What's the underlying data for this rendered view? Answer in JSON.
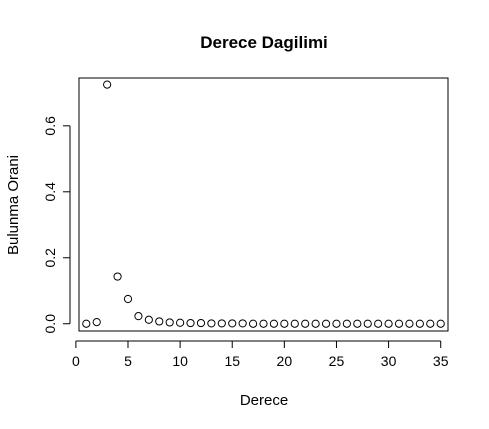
{
  "chart_data": {
    "type": "scatter",
    "title": "Derece Dagilimi",
    "xlabel": "Derece",
    "ylabel": "Bulunma Orani",
    "xlim": [
      0.3,
      35.7
    ],
    "ylim": [
      -0.022,
      0.745
    ],
    "xticks": [
      0,
      5,
      10,
      15,
      20,
      25,
      30,
      35
    ],
    "xtick_labels": [
      "0",
      "5",
      "10",
      "15",
      "20",
      "25",
      "30",
      "35"
    ],
    "yticks": [
      0.0,
      0.2,
      0.4,
      0.6
    ],
    "ytick_labels": [
      "0.0",
      "0.2",
      "0.4",
      "0.6"
    ],
    "grid": false,
    "marker": "open-circle",
    "x": [
      1,
      2,
      3,
      4,
      5,
      6,
      7,
      8,
      9,
      10,
      11,
      12,
      13,
      14,
      15,
      16,
      17,
      18,
      19,
      20,
      21,
      22,
      23,
      24,
      25,
      26,
      27,
      28,
      29,
      30,
      31,
      32,
      33,
      34,
      35
    ],
    "y": [
      0.0,
      0.005,
      0.725,
      0.143,
      0.075,
      0.023,
      0.012,
      0.007,
      0.004,
      0.003,
      0.002,
      0.002,
      0.001,
      0.001,
      0.001,
      0.001,
      0.0,
      0.0,
      0.0,
      0.0,
      0.0,
      0.0,
      0.0,
      0.0,
      0.0,
      0.0,
      0.0,
      0.0,
      0.0,
      0.0,
      0.0,
      0.0,
      0.0,
      0.0,
      0.0
    ]
  }
}
